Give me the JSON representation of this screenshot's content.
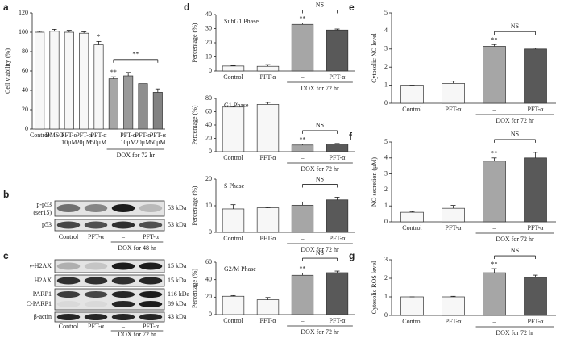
{
  "chart_data": [
    {
      "type": "bar",
      "panel_label": "a",
      "y_label": "Cell viability (%)",
      "categories": [
        "Control",
        "DMSO",
        [
          "PFT-α",
          "10μM"
        ],
        [
          "PFT-α",
          "20μM"
        ],
        [
          "PFT-α",
          "50μM"
        ],
        "–",
        [
          "PFT-α",
          "10μM"
        ],
        [
          "PFT-α",
          "20μM"
        ],
        [
          "PFT-α",
          "50μM"
        ]
      ],
      "values": [
        100,
        101,
        100,
        99,
        87,
        52,
        55,
        47,
        38
      ],
      "errors": [
        1,
        2,
        2,
        1.5,
        3.5,
        2,
        3.5,
        2.5,
        3.5
      ],
      "colors": [
        "#f7f7f7",
        "#f7f7f7",
        "#f7f7f7",
        "#f7f7f7",
        "#f7f7f7",
        "#a6a6a6",
        "#9a9a9a",
        "#8e8e8e",
        "#828282"
      ],
      "significance": [
        null,
        null,
        null,
        null,
        "*",
        "**",
        null,
        null,
        null
      ],
      "bracket": "**",
      "group": "DOX for 72 hr",
      "ylim": [
        0,
        120
      ],
      "yticks": [
        0,
        20,
        40,
        60,
        80,
        100,
        120
      ]
    },
    {
      "type": "bar",
      "panel_label": "d",
      "title": "SubG1 Phase",
      "y_label": "Percentage (%)",
      "categories": [
        "Control",
        "PFT-α",
        "–",
        "PFT-α"
      ],
      "values": [
        3.5,
        3.3,
        33,
        29
      ],
      "errors": [
        0.3,
        1.2,
        1,
        0.7
      ],
      "colors": [
        "#f7f7f7",
        "#f7f7f7",
        "#a6a6a6",
        "#595959"
      ],
      "significance": [
        null,
        null,
        "**",
        null
      ],
      "bracket": "NS",
      "group": "DOX for 72 hr",
      "ylim": [
        0,
        40
      ],
      "yticks": [
        0,
        10,
        20,
        30,
        40
      ]
    },
    {
      "type": "bar",
      "title": "G1 Phase",
      "y_label": "Percentage (%)",
      "categories": [
        "Control",
        "PFT-α",
        "–",
        "PFT-α"
      ],
      "values": [
        67,
        71,
        10,
        11.5
      ],
      "errors": [
        1,
        3,
        1.5,
        0.8
      ],
      "colors": [
        "#f7f7f7",
        "#f7f7f7",
        "#a6a6a6",
        "#595959"
      ],
      "significance": [
        null,
        null,
        "**",
        null
      ],
      "bracket": "NS",
      "group": "DOX for 72 hr",
      "ylim": [
        0,
        80
      ],
      "yticks": [
        0,
        20,
        40,
        60,
        80
      ]
    },
    {
      "type": "bar",
      "title": "S Phase",
      "y_label": "Percentage (%)",
      "categories": [
        "Control",
        "PFT-α",
        "–",
        "PFT-α"
      ],
      "values": [
        8.8,
        9.2,
        10.2,
        12.2
      ],
      "errors": [
        1.6,
        0.2,
        1.2,
        1
      ],
      "colors": [
        "#f7f7f7",
        "#f7f7f7",
        "#a6a6a6",
        "#595959"
      ],
      "significance": [
        null,
        null,
        null,
        null
      ],
      "bracket": "NS",
      "group": "DOX for 72 hr",
      "ylim": [
        0,
        20
      ],
      "yticks": [
        0,
        10,
        20
      ]
    },
    {
      "type": "bar",
      "title": "G2/M Phase",
      "y_label": "Percentage (%)",
      "categories": [
        "Control",
        "PFT-α",
        "–",
        "PFT-α"
      ],
      "values": [
        21,
        17,
        45,
        48
      ],
      "errors": [
        0.8,
        2.6,
        2.5,
        1.8
      ],
      "colors": [
        "#f7f7f7",
        "#f7f7f7",
        "#a6a6a6",
        "#595959"
      ],
      "significance": [
        null,
        null,
        "**",
        null
      ],
      "bracket": "NS",
      "group": "DOX for 72 hr",
      "ylim": [
        0,
        60
      ],
      "yticks": [
        0,
        20,
        40,
        60
      ]
    },
    {
      "type": "bar",
      "panel_label": "e",
      "y_label": "Cytosolic NO level",
      "categories": [
        "Control",
        "PFT-α",
        "–",
        "PFT-α"
      ],
      "values": [
        1,
        1.1,
        3.15,
        3.0
      ],
      "errors": [
        0,
        0.12,
        0.1,
        0.05
      ],
      "colors": [
        "#f7f7f7",
        "#f7f7f7",
        "#a6a6a6",
        "#595959"
      ],
      "significance": [
        null,
        null,
        "**",
        null
      ],
      "bracket": "NS",
      "group": "DOX for 72 hr",
      "ylim": [
        0,
        5
      ],
      "yticks": [
        0,
        1,
        2,
        3,
        4,
        5
      ]
    },
    {
      "type": "bar",
      "panel_label": "f",
      "y_label": "NO secretion (μM)",
      "categories": [
        "Control",
        "PFT-α",
        "–",
        "PFT-α"
      ],
      "values": [
        0.6,
        0.85,
        3.8,
        4.0
      ],
      "errors": [
        0.05,
        0.18,
        0.2,
        0.35
      ],
      "colors": [
        "#f7f7f7",
        "#f7f7f7",
        "#a6a6a6",
        "#595959"
      ],
      "significance": [
        null,
        null,
        "**",
        null
      ],
      "bracket": "NS",
      "group": "DOX for 72 hr",
      "ylim": [
        0,
        5
      ],
      "yticks": [
        0,
        1,
        2,
        3,
        4,
        5
      ]
    },
    {
      "type": "bar",
      "panel_label": "g",
      "y_label": "Cytosolic ROS level",
      "categories": [
        "Control",
        "PFT-α",
        "–",
        "PFT-α"
      ],
      "values": [
        1,
        1,
        2.3,
        2.05
      ],
      "errors": [
        0,
        0.03,
        0.22,
        0.12
      ],
      "colors": [
        "#f7f7f7",
        "#f7f7f7",
        "#a6a6a6",
        "#595959"
      ],
      "significance": [
        null,
        null,
        "**",
        null
      ],
      "bracket": "NS",
      "group": "DOX for 72 hr",
      "ylim": [
        0,
        3
      ],
      "yticks": [
        0,
        1,
        2,
        3
      ]
    }
  ],
  "blots": [
    {
      "panel_label": "b",
      "rows": [
        {
          "labels": [
            "p-p53",
            "(ser15)"
          ],
          "kda": [
            "53 kDa"
          ]
        },
        {
          "labels": [
            "p53"
          ],
          "kda": [
            "53 kDa"
          ]
        }
      ],
      "lanes": [
        "Control",
        "PFT-α",
        "–",
        "PFT-α"
      ],
      "group": "DOX for 48 hr"
    },
    {
      "panel_label": "c",
      "rows": [
        {
          "labels": [
            "γ-H2AX"
          ],
          "kda": [
            "15 kDa"
          ]
        },
        {
          "labels": [
            "H2AX"
          ],
          "kda": [
            "15 kDa"
          ]
        },
        {
          "labels": [
            "PARP1",
            "C-PARP1"
          ],
          "kda": [
            "116 kDa",
            "89 kDa"
          ]
        },
        {
          "labels": [
            "β-actin"
          ],
          "kda": [
            "43 kDa"
          ]
        }
      ],
      "lanes": [
        "Control",
        "PFT-α",
        "–",
        "PFT-α"
      ],
      "group": "DOX for 72 hr"
    }
  ]
}
